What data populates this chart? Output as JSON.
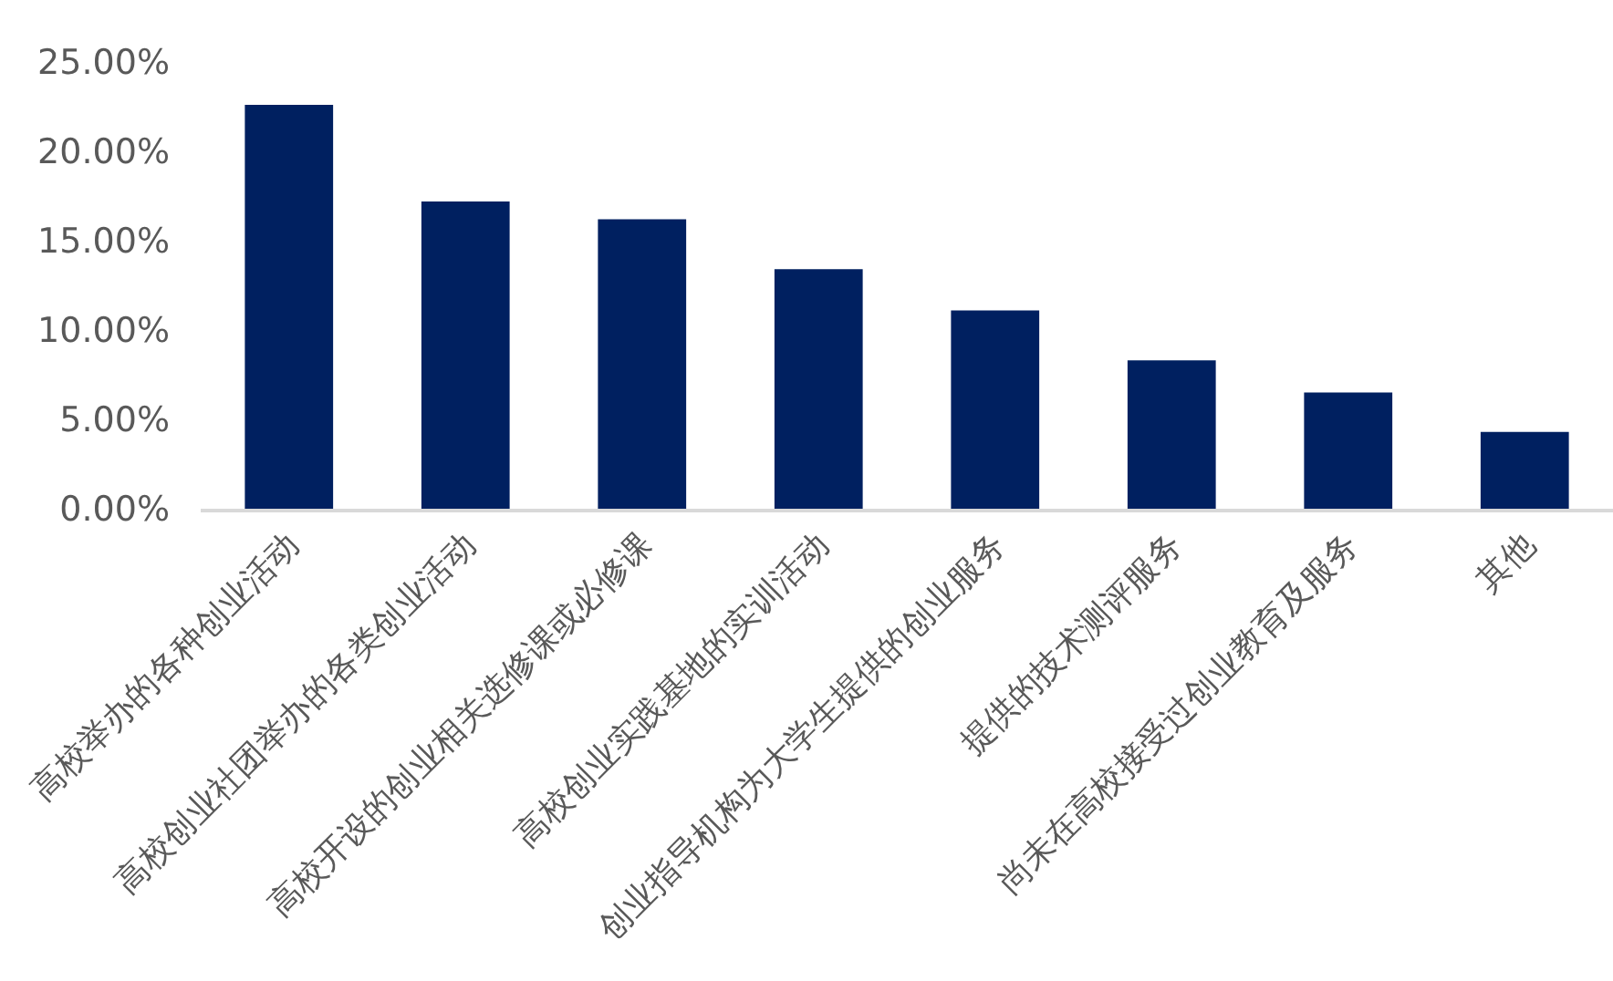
{
  "chart_data": {
    "type": "bar",
    "categories": [
      "高校举办的各种创业活动",
      "高校创业社团举办的各类创业活动",
      "高校开设的创业相关选修课或必修课",
      "高校创业实践基地的实训活动",
      "创业指导机构为大学生提供的创业服务",
      "提供的技术测评服务",
      "尚未在高校接受过创业教育及服务",
      "其他"
    ],
    "values": [
      22.6,
      17.2,
      16.2,
      13.4,
      11.1,
      8.3,
      6.5,
      4.3
    ],
    "color": "#002060",
    "ylim": [
      0,
      25
    ],
    "yticks": [
      {
        "value": 0,
        "label": "0.00%"
      },
      {
        "value": 5,
        "label": "5.00%"
      },
      {
        "value": 10,
        "label": "10.00%"
      },
      {
        "value": 15,
        "label": "15.00%"
      },
      {
        "value": 20,
        "label": "20.00%"
      },
      {
        "value": 25,
        "label": "25.00%"
      }
    ]
  }
}
